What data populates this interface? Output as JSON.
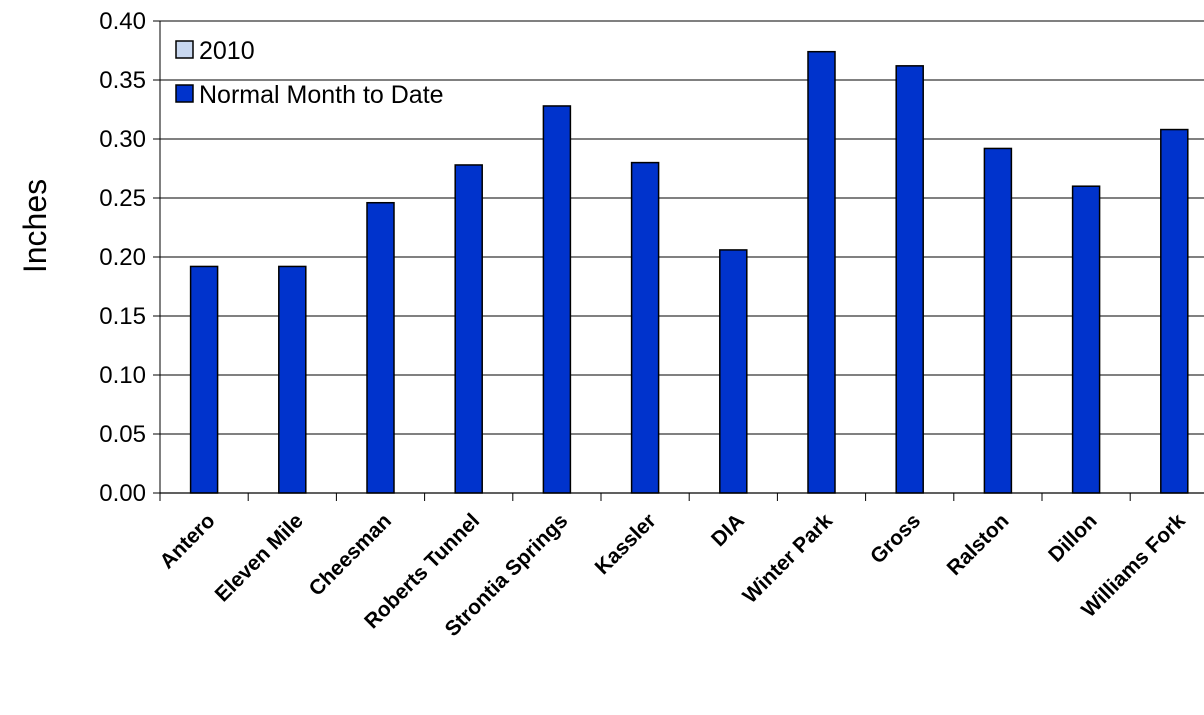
{
  "chart_data": {
    "type": "bar",
    "title": "",
    "xlabel": "",
    "ylabel": "Inches",
    "ylim": [
      0,
      0.4
    ],
    "yticks": [
      "0.00",
      "0.05",
      "0.10",
      "0.15",
      "0.20",
      "0.25",
      "0.30",
      "0.35",
      "0.40"
    ],
    "grid": true,
    "legend_position": "top-left",
    "categories": [
      "Antero",
      "Eleven Mile",
      "Cheesman",
      "Roberts Tunnel",
      "Strontia Springs",
      "Kassler",
      "DIA",
      "Winter Park",
      "Gross",
      "Ralston",
      "Dillon",
      "Williams Fork"
    ],
    "series": [
      {
        "name": "2010",
        "values": [
          0,
          0,
          0,
          0,
          0,
          0,
          0,
          0,
          0,
          0,
          0,
          0
        ],
        "color": "#c9d8f0"
      },
      {
        "name": "Normal Month to Date",
        "values": [
          0.192,
          0.192,
          0.246,
          0.278,
          0.328,
          0.28,
          0.206,
          0.374,
          0.362,
          0.292,
          0.26,
          0.308
        ],
        "color": "#0033cc"
      }
    ]
  }
}
